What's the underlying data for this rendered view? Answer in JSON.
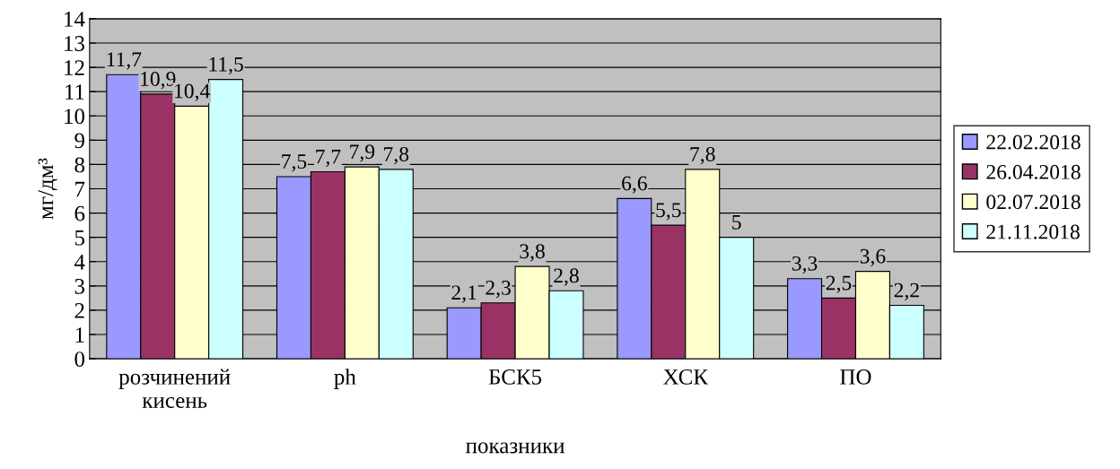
{
  "chart_data": {
    "type": "bar",
    "xlabel": "показники",
    "ylabel": "мг/дм³",
    "categories": [
      "розчинений\nкисень",
      "ph",
      "БСК5",
      "ХСК",
      "ПО"
    ],
    "series": [
      {
        "name": "22.02.2018",
        "color": "#9999ff",
        "values": [
          11.7,
          7.5,
          2.1,
          6.6,
          3.3
        ],
        "value_labels": [
          "11,7",
          "7,5",
          "2,1",
          "6,6",
          "3,3"
        ]
      },
      {
        "name": "26.04.2018",
        "color": "#993366",
        "values": [
          10.9,
          7.7,
          2.3,
          5.5,
          2.5
        ],
        "value_labels": [
          "10,9",
          "7,7",
          "2,3",
          "5,5",
          "2,5"
        ]
      },
      {
        "name": "02.07.2018",
        "color": "#ffffcc",
        "values": [
          10.4,
          7.9,
          3.8,
          7.8,
          3.6
        ],
        "value_labels": [
          "10,4",
          "7,9",
          "3,8",
          "7,8",
          "3,6"
        ]
      },
      {
        "name": "21.11.2018",
        "color": "#ccffff",
        "values": [
          11.5,
          7.8,
          2.8,
          5,
          2.2
        ],
        "value_labels": [
          "11,5",
          "7,8",
          "2,8",
          "5",
          "2,2"
        ]
      }
    ],
    "ylim": [
      0,
      14
    ],
    "yticks": [
      0,
      1,
      2,
      3,
      4,
      5,
      6,
      7,
      8,
      9,
      10,
      11,
      12,
      13,
      14
    ],
    "grid": "y",
    "legend": "right"
  }
}
